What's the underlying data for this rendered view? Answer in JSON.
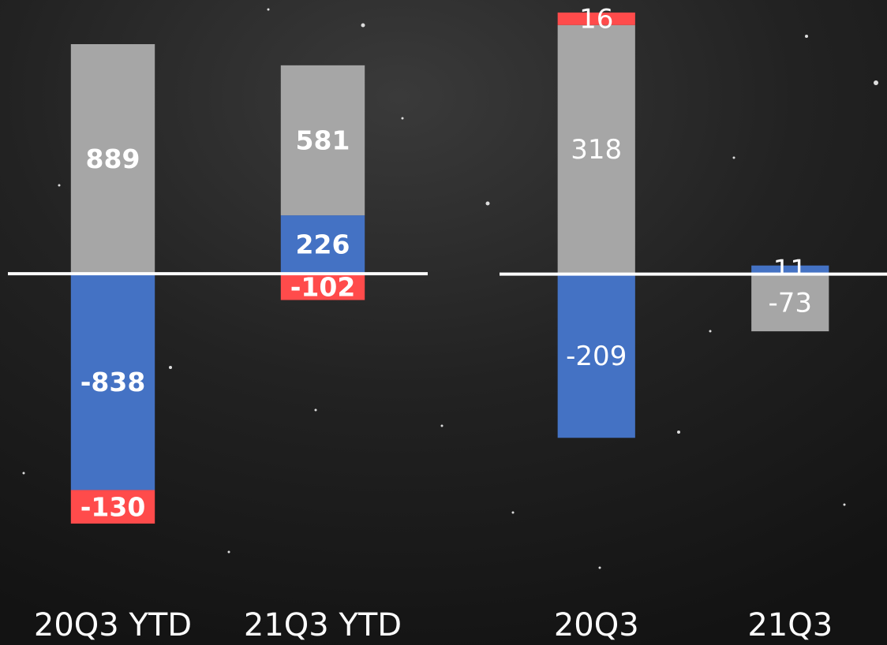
{
  "chart_data": [
    {
      "type": "bar",
      "stacked": true,
      "categories": [
        "20Q3 YTD",
        "21Q3 YTD"
      ],
      "series": [
        {
          "name": null,
          "color": "#4472c4",
          "values": [
            -838,
            226
          ]
        },
        {
          "name": null,
          "color": "#a6a6a6",
          "values": [
            889,
            581
          ]
        },
        {
          "name": null,
          "color": "#ff4b4b",
          "values": [
            -130,
            -102
          ]
        }
      ],
      "ylim": [
        -1200,
        1060
      ]
    },
    {
      "type": "bar",
      "stacked": true,
      "categories": [
        "20Q3",
        "21Q3"
      ],
      "series": [
        {
          "name": null,
          "color": "#4472c4",
          "values": [
            -209,
            11
          ]
        },
        {
          "name": null,
          "color": "#a6a6a6",
          "values": [
            318,
            -73
          ]
        },
        {
          "name": null,
          "color": "#ff4b4b",
          "values": [
            16,
            0
          ]
        }
      ],
      "ylim": [
        -395,
        350
      ]
    }
  ]
}
